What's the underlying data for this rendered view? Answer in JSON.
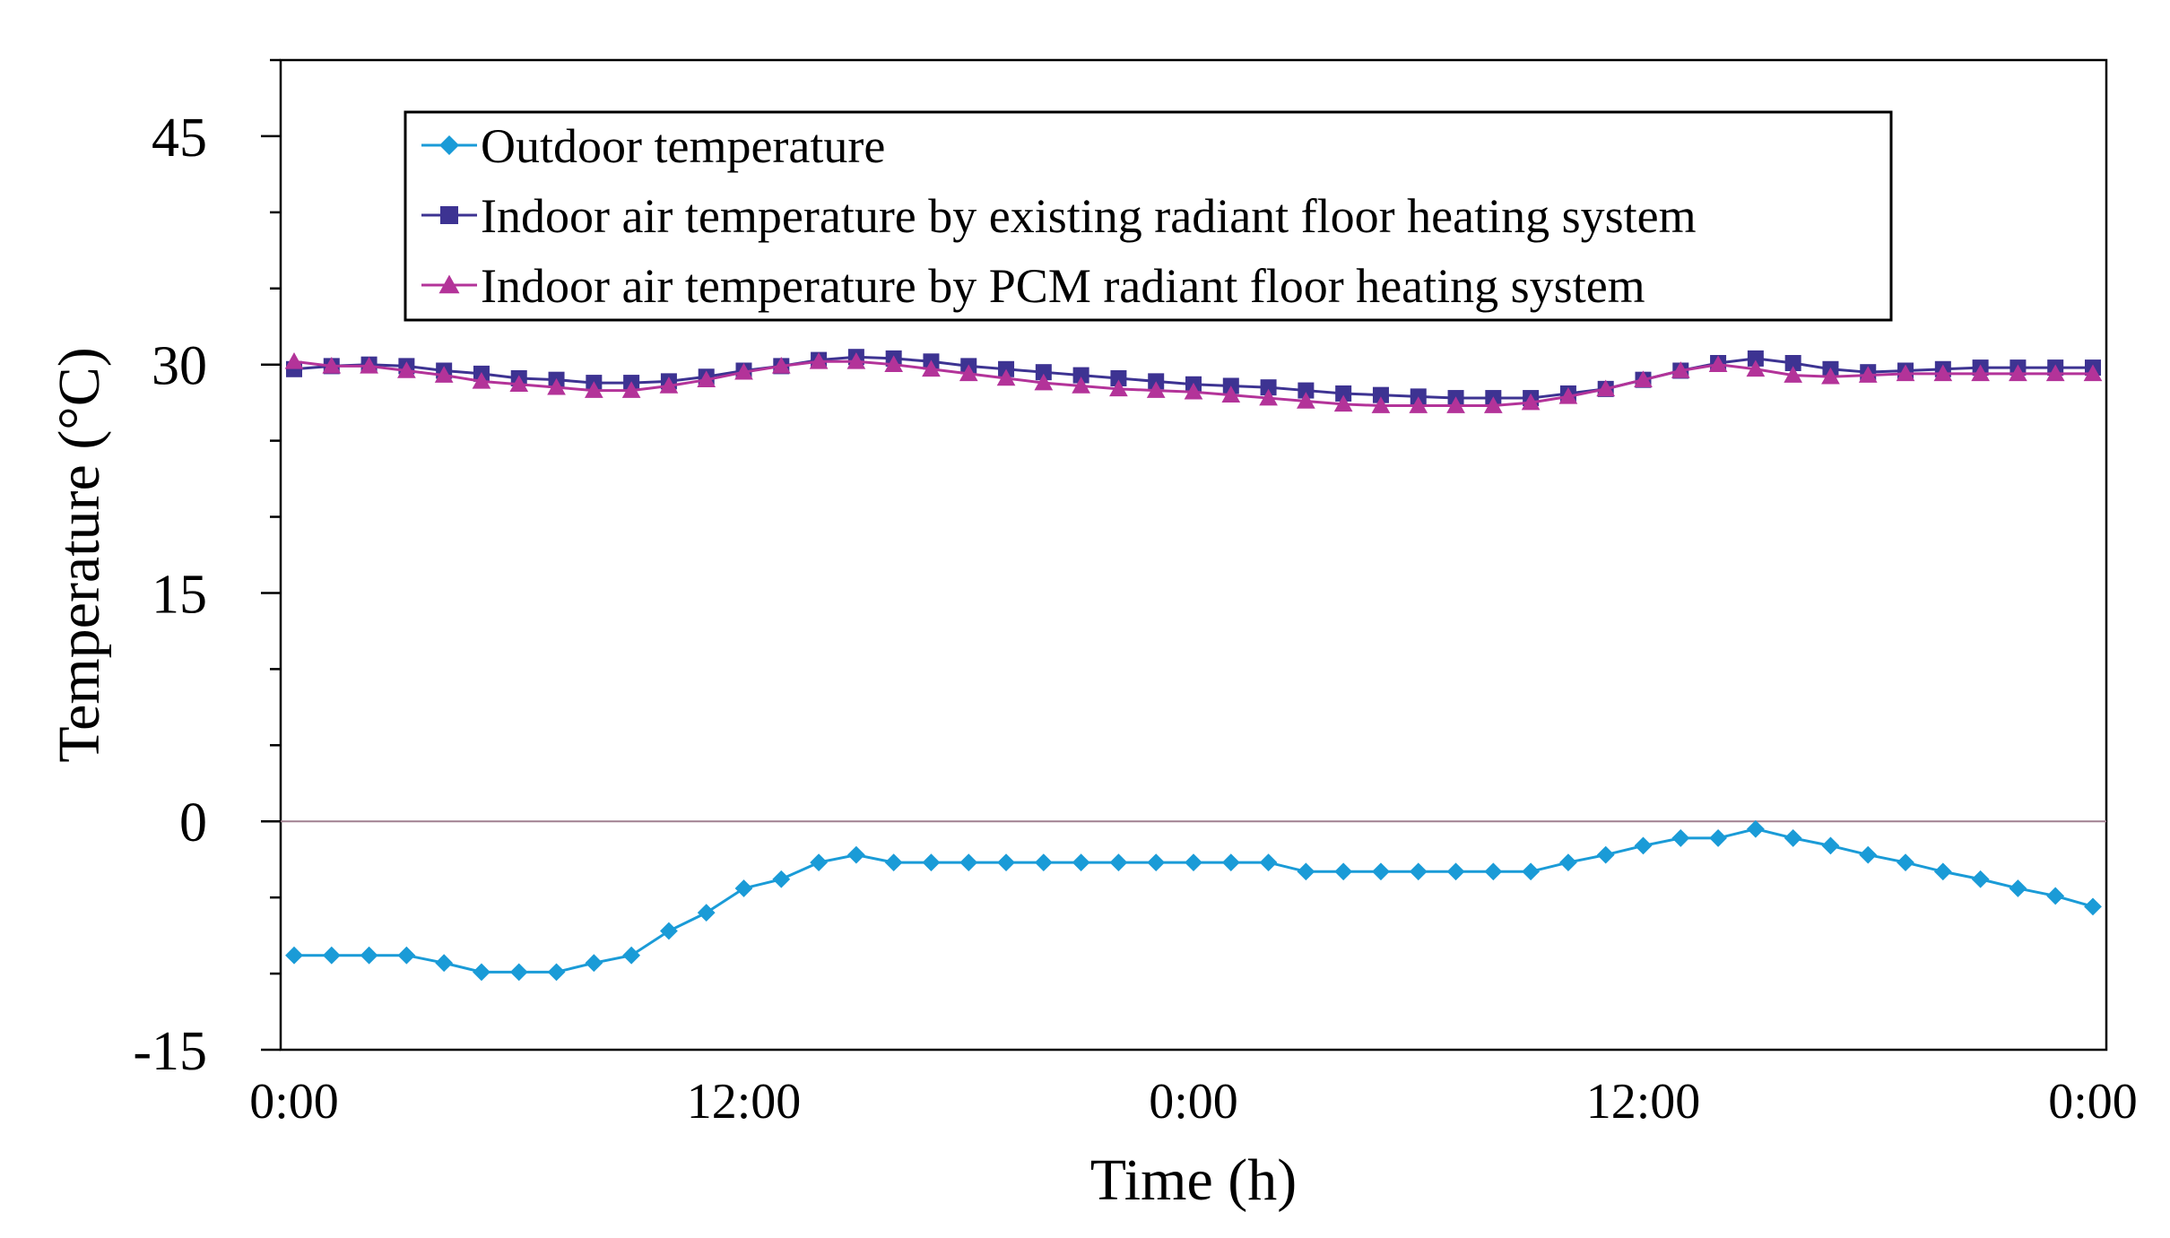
{
  "chart_data": {
    "type": "line",
    "title": "",
    "xlabel": "Time (h)",
    "ylabel": "Temperature (°C)",
    "ylim": [
      -15,
      50
    ],
    "xlim": [
      0,
      48
    ],
    "yticks": [
      -15,
      0,
      15,
      30,
      45
    ],
    "xticks": [
      {
        "value": 0,
        "label": "0:00"
      },
      {
        "value": 12,
        "label": "12:00"
      },
      {
        "value": 24,
        "label": "0:00"
      },
      {
        "value": 36,
        "label": "12:00"
      },
      {
        "value": 48,
        "label": "0:00"
      }
    ],
    "grid": false,
    "zero_line": true,
    "legend_position": "top-left",
    "x": [
      0,
      1,
      2,
      3,
      4,
      5,
      6,
      7,
      8,
      9,
      10,
      11,
      12,
      13,
      14,
      15,
      16,
      17,
      18,
      19,
      20,
      21,
      22,
      23,
      24,
      25,
      26,
      27,
      28,
      29,
      30,
      31,
      32,
      33,
      34,
      35,
      36,
      37,
      38,
      39,
      40,
      41,
      42,
      43,
      44,
      45,
      46,
      47,
      48
    ],
    "series": [
      {
        "name": "Outdoor temperature",
        "color": "#1a9bd7",
        "marker": "diamond",
        "values": [
          -8.8,
          -8.8,
          -8.8,
          -8.8,
          -9.3,
          -9.9,
          -9.9,
          -9.9,
          -9.3,
          -8.8,
          -7.2,
          -6.0,
          -4.4,
          -3.8,
          -2.7,
          -2.2,
          -2.7,
          -2.7,
          -2.7,
          -2.7,
          -2.7,
          -2.7,
          -2.7,
          -2.7,
          -2.7,
          -2.7,
          -2.7,
          -3.3,
          -3.3,
          -3.3,
          -3.3,
          -3.3,
          -3.3,
          -3.3,
          -2.7,
          -2.2,
          -1.6,
          -1.1,
          -1.1,
          -0.5,
          -1.1,
          -1.6,
          -2.2,
          -2.7,
          -3.3,
          -3.8,
          -4.4,
          -4.9,
          -5.6
        ]
      },
      {
        "name": "Indoor air temperature by existing radiant floor heating system",
        "color": "#3d3392",
        "marker": "square",
        "values": [
          29.7,
          29.9,
          30.0,
          29.9,
          29.6,
          29.4,
          29.1,
          29.0,
          28.8,
          28.8,
          28.9,
          29.2,
          29.6,
          29.9,
          30.3,
          30.5,
          30.4,
          30.2,
          29.9,
          29.7,
          29.5,
          29.3,
          29.1,
          28.9,
          28.7,
          28.6,
          28.5,
          28.3,
          28.1,
          28.0,
          27.9,
          27.8,
          27.8,
          27.8,
          28.1,
          28.4,
          29.0,
          29.6,
          30.1,
          30.4,
          30.1,
          29.7,
          29.5,
          29.6,
          29.7,
          29.8,
          29.8,
          29.8,
          29.8
        ]
      },
      {
        "name": "Indoor air temperature by PCM radiant floor heating system",
        "color": "#b33399",
        "marker": "triangle",
        "values": [
          30.2,
          29.9,
          29.9,
          29.6,
          29.3,
          28.9,
          28.7,
          28.5,
          28.3,
          28.3,
          28.6,
          29.0,
          29.5,
          29.9,
          30.2,
          30.2,
          30.0,
          29.7,
          29.4,
          29.1,
          28.8,
          28.6,
          28.4,
          28.3,
          28.2,
          28.0,
          27.8,
          27.6,
          27.4,
          27.3,
          27.3,
          27.3,
          27.3,
          27.5,
          27.9,
          28.4,
          29.0,
          29.6,
          30.0,
          29.7,
          29.3,
          29.2,
          29.3,
          29.4,
          29.4,
          29.4,
          29.4,
          29.4,
          29.4
        ]
      }
    ]
  }
}
